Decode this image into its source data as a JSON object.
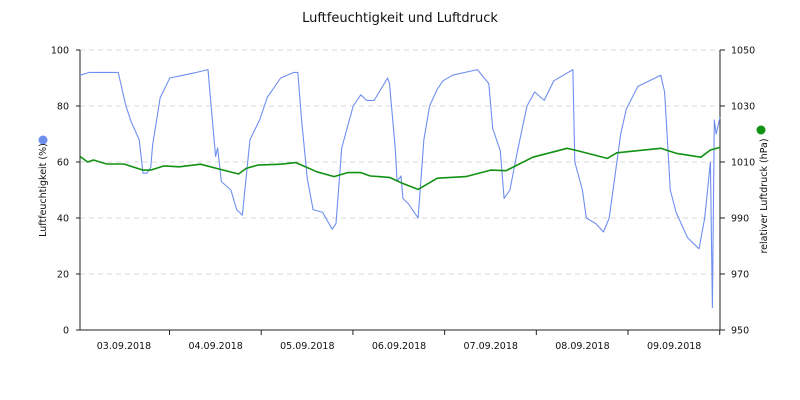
{
  "chart_data": {
    "type": "line",
    "title": "Luftfeuchtigkeit und Luftdruck",
    "xlabel": "",
    "x_tick_labels": [
      "03.09.2018",
      "04.09.2018",
      "05.09.2018",
      "06.09.2018",
      "07.09.2018",
      "08.09.2018",
      "09.09.2018"
    ],
    "xlim": [
      "2018-09-03 00:30",
      "2018-09-10 00:00"
    ],
    "y_left": {
      "label": "Luftfeuchtigkeit (%)",
      "range": [
        0,
        100
      ],
      "ticks": [
        0,
        20,
        40,
        60,
        80,
        100
      ]
    },
    "y_right": {
      "label": "relativer Luftdruck (hPa)",
      "range": [
        950,
        1050
      ],
      "ticks": [
        950,
        970,
        990,
        1010,
        1030,
        1050
      ]
    },
    "grid": "horizontal dashed",
    "legend": "axis-title dots",
    "series": [
      {
        "name": "Luftfeuchtigkeit (%)",
        "axis": "left",
        "color": "#6f8ff0",
        "points": [
          [
            "2018-09-03 00:30",
            91
          ],
          [
            "2018-09-03 03:00",
            92
          ],
          [
            "2018-09-03 10:30",
            92
          ],
          [
            "2018-09-03 12:30",
            80
          ],
          [
            "2018-09-03 14:00",
            74
          ],
          [
            "2018-09-03 16:00",
            68
          ],
          [
            "2018-09-03 17:00",
            56
          ],
          [
            "2018-09-03 18:00",
            56
          ],
          [
            "2018-09-03 19:00",
            58
          ],
          [
            "2018-09-03 19:30",
            66
          ],
          [
            "2018-09-03 21:30",
            83
          ],
          [
            "2018-09-04 00:00",
            90
          ],
          [
            "2018-09-04 03:30",
            91
          ],
          [
            "2018-09-04 07:00",
            92
          ],
          [
            "2018-09-04 10:00",
            93
          ],
          [
            "2018-09-04 10:30",
            85
          ],
          [
            "2018-09-04 12:00",
            62
          ],
          [
            "2018-09-04 12:30",
            65
          ],
          [
            "2018-09-04 13:30",
            53
          ],
          [
            "2018-09-04 16:00",
            50
          ],
          [
            "2018-09-04 17:30",
            43
          ],
          [
            "2018-09-04 19:00",
            41
          ],
          [
            "2018-09-04 19:30",
            48
          ],
          [
            "2018-09-04 21:00",
            68
          ],
          [
            "2018-09-04 23:30",
            75
          ],
          [
            "2018-09-05 01:30",
            83
          ],
          [
            "2018-09-05 05:00",
            90
          ],
          [
            "2018-09-05 08:30",
            92
          ],
          [
            "2018-09-05 09:30",
            92
          ],
          [
            "2018-09-05 10:30",
            75
          ],
          [
            "2018-09-05 12:00",
            54
          ],
          [
            "2018-09-05 13:30",
            43
          ],
          [
            "2018-09-05 16:00",
            42
          ],
          [
            "2018-09-05 18:30",
            36
          ],
          [
            "2018-09-05 19:30",
            38
          ],
          [
            "2018-09-05 21:00",
            65
          ],
          [
            "2018-09-06 00:00",
            80
          ],
          [
            "2018-09-06 02:00",
            84
          ],
          [
            "2018-09-06 03:30",
            82
          ],
          [
            "2018-09-06 05:30",
            82
          ],
          [
            "2018-09-06 09:00",
            90
          ],
          [
            "2018-09-06 09:30",
            88
          ],
          [
            "2018-09-06 11:00",
            65
          ],
          [
            "2018-09-06 11:30",
            53
          ],
          [
            "2018-09-06 12:30",
            55
          ],
          [
            "2018-09-06 13:00",
            47
          ],
          [
            "2018-09-06 14:30",
            45
          ],
          [
            "2018-09-06 16:00",
            42
          ],
          [
            "2018-09-06 17:00",
            40
          ],
          [
            "2018-09-06 18:30",
            68
          ],
          [
            "2018-09-06 20:00",
            80
          ],
          [
            "2018-09-06 22:00",
            86
          ],
          [
            "2018-09-06 23:30",
            89
          ],
          [
            "2018-09-07 02:00",
            91
          ],
          [
            "2018-09-07 08:30",
            93
          ],
          [
            "2018-09-07 11:30",
            88
          ],
          [
            "2018-09-07 12:30",
            72
          ],
          [
            "2018-09-07 14:30",
            64
          ],
          [
            "2018-09-07 15:30",
            47
          ],
          [
            "2018-09-07 17:00",
            50
          ],
          [
            "2018-09-07 19:00",
            64
          ],
          [
            "2018-09-07 21:30",
            80
          ],
          [
            "2018-09-07 23:30",
            85
          ],
          [
            "2018-09-08 02:00",
            82
          ],
          [
            "2018-09-08 04:30",
            89
          ],
          [
            "2018-09-08 09:30",
            93
          ],
          [
            "2018-09-08 10:00",
            60
          ],
          [
            "2018-09-08 12:00",
            50
          ],
          [
            "2018-09-08 13:00",
            40
          ],
          [
            "2018-09-08 15:30",
            38
          ],
          [
            "2018-09-08 17:30",
            35
          ],
          [
            "2018-09-08 19:00",
            40
          ],
          [
            "2018-09-08 22:00",
            70
          ],
          [
            "2018-09-08 23:30",
            79
          ],
          [
            "2018-09-09 02:30",
            87
          ],
          [
            "2018-09-09 08:30",
            91
          ],
          [
            "2018-09-09 09:30",
            85
          ],
          [
            "2018-09-09 11:00",
            50
          ],
          [
            "2018-09-09 12:30",
            42
          ],
          [
            "2018-09-09 15:30",
            33
          ],
          [
            "2018-09-09 18:30",
            29
          ],
          [
            "2018-09-09 20:00",
            40
          ],
          [
            "2018-09-09 21:30",
            60
          ],
          [
            "2018-09-09 22:00",
            8
          ],
          [
            "2018-09-09 22:30",
            75
          ],
          [
            "2018-09-09 23:00",
            70
          ],
          [
            "2018-09-10 00:00",
            76
          ]
        ]
      },
      {
        "name": "relativer Luftdruck (hPa)",
        "axis": "right",
        "color": "#129112",
        "points": [
          [
            "2018-09-03 00:30",
            1012
          ],
          [
            "2018-09-03 02:30",
            1010
          ],
          [
            "2018-09-03 04:00",
            1010.7
          ],
          [
            "2018-09-03 07:30",
            1009.3
          ],
          [
            "2018-09-03 12:00",
            1009.3
          ],
          [
            "2018-09-03 17:00",
            1007.1
          ],
          [
            "2018-09-03 19:00",
            1007.1
          ],
          [
            "2018-09-03 22:30",
            1008.6
          ],
          [
            "2018-09-04 02:30",
            1008.3
          ],
          [
            "2018-09-04 08:00",
            1009.2
          ],
          [
            "2018-09-04 14:00",
            1007.1
          ],
          [
            "2018-09-04 18:00",
            1005.7
          ],
          [
            "2018-09-04 20:00",
            1007.7
          ],
          [
            "2018-09-04 23:00",
            1008.9
          ],
          [
            "2018-09-05 05:00",
            1009.2
          ],
          [
            "2018-09-05 09:00",
            1009.8
          ],
          [
            "2018-09-05 14:30",
            1006.5
          ],
          [
            "2018-09-05 19:00",
            1004.8
          ],
          [
            "2018-09-05 22:30",
            1006.2
          ],
          [
            "2018-09-06 02:00",
            1006.2
          ],
          [
            "2018-09-06 04:30",
            1005
          ],
          [
            "2018-09-06 09:30",
            1004.5
          ],
          [
            "2018-09-06 12:30",
            1002.6
          ],
          [
            "2018-09-06 17:00",
            1000.2
          ],
          [
            "2018-09-06 22:00",
            1004.2
          ],
          [
            "2018-09-07 05:30",
            1004.8
          ],
          [
            "2018-09-07 12:00",
            1007.1
          ],
          [
            "2018-09-07 16:00",
            1006.9
          ],
          [
            "2018-09-07 23:00",
            1011.7
          ],
          [
            "2018-09-08 08:00",
            1014.9
          ],
          [
            "2018-09-08 10:30",
            1014.1
          ],
          [
            "2018-09-08 18:30",
            1011.3
          ],
          [
            "2018-09-08 21:00",
            1013.3
          ],
          [
            "2018-09-09 08:30",
            1014.9
          ],
          [
            "2018-09-09 12:30",
            1013.1
          ],
          [
            "2018-09-09 19:00",
            1011.7
          ],
          [
            "2018-09-09 21:30",
            1014.3
          ],
          [
            "2018-09-10 00:00",
            1015.2
          ]
        ]
      }
    ]
  }
}
